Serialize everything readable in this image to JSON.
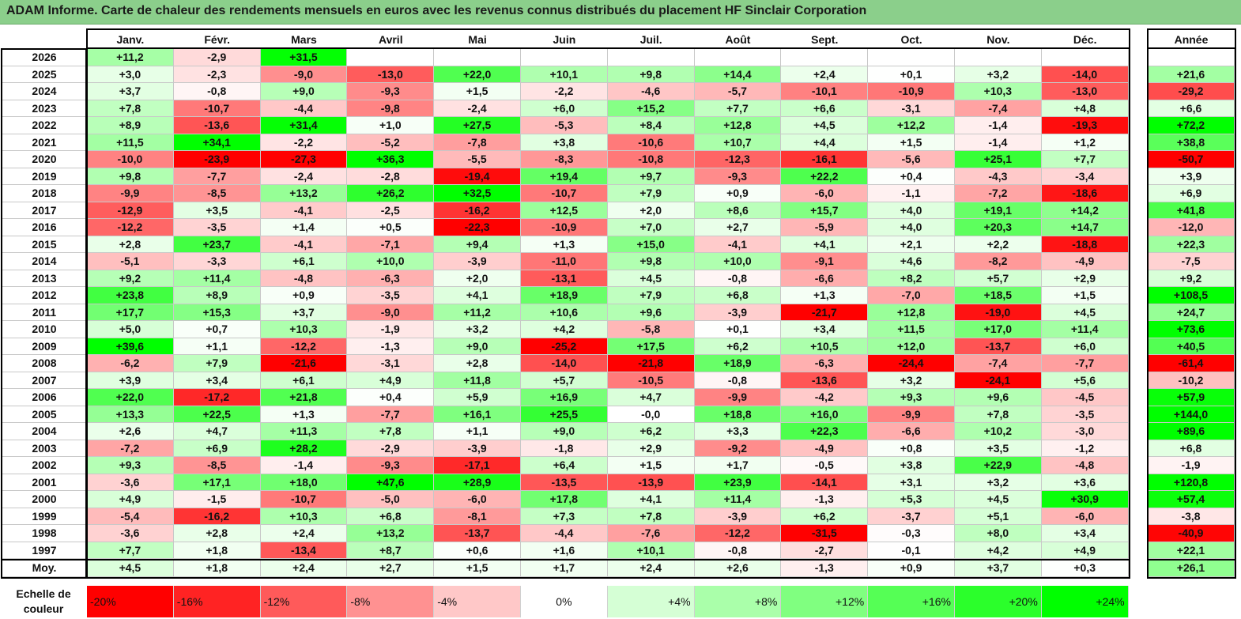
{
  "title": "ADAM Informe. Carte de chaleur des rendements mensuels en euros avec les revenus connus distribués du placement HF Sinclair Corporation",
  "chart_data": {
    "type": "heatmap",
    "title": "ADAM Informe. Carte de chaleur des rendements mensuels en euros avec les revenus connus distribués du placement HF Sinclair Corporation",
    "columns": [
      "Janv.",
      "Févr.",
      "Mars",
      "Avril",
      "Mai",
      "Juin",
      "Juil.",
      "Août",
      "Sept.",
      "Oct.",
      "Nov.",
      "Déc."
    ],
    "annual_label": "Année",
    "rows": [
      {
        "year": "2026",
        "values": [
          "+11,2",
          "-2,9",
          "+31,5",
          "",
          "",
          "",
          "",
          "",
          "",
          "",
          "",
          ""
        ],
        "annual": ""
      },
      {
        "year": "2025",
        "values": [
          "+3,0",
          "-2,3",
          "-9,0",
          "-13,0",
          "+22,0",
          "+10,1",
          "+9,8",
          "+14,4",
          "+2,4",
          "+0,1",
          "+3,2",
          "-14,0"
        ],
        "annual": "+21,6"
      },
      {
        "year": "2024",
        "values": [
          "+3,7",
          "-0,8",
          "+9,0",
          "-9,3",
          "+1,5",
          "-2,2",
          "-4,6",
          "-5,7",
          "-10,1",
          "-10,9",
          "+10,3",
          "-13,0"
        ],
        "annual": "-29,2"
      },
      {
        "year": "2023",
        "values": [
          "+7,8",
          "-10,7",
          "-4,4",
          "-9,8",
          "-2,4",
          "+6,0",
          "+15,2",
          "+7,7",
          "+6,6",
          "-3,1",
          "-7,4",
          "+4,8"
        ],
        "annual": "+6,6"
      },
      {
        "year": "2022",
        "values": [
          "+8,9",
          "-13,6",
          "+31,4",
          "+1,0",
          "+27,5",
          "-5,3",
          "+8,4",
          "+12,8",
          "+4,5",
          "+12,2",
          "-1,4",
          "-19,3"
        ],
        "annual": "+72,2"
      },
      {
        "year": "2021",
        "values": [
          "+11,5",
          "+34,1",
          "-2,2",
          "-5,2",
          "-7,8",
          "+3,8",
          "-10,6",
          "+10,7",
          "+4,4",
          "+1,5",
          "-1,4",
          "+1,2"
        ],
        "annual": "+38,8"
      },
      {
        "year": "2020",
        "values": [
          "-10,0",
          "-23,9",
          "-27,3",
          "+36,3",
          "-5,5",
          "-8,3",
          "-10,8",
          "-12,3",
          "-16,1",
          "-5,6",
          "+25,1",
          "+7,7"
        ],
        "annual": "-50,7"
      },
      {
        "year": "2019",
        "values": [
          "+9,8",
          "-7,7",
          "-2,4",
          "-2,8",
          "-19,4",
          "+19,4",
          "+9,7",
          "-9,3",
          "+22,2",
          "+0,4",
          "-4,3",
          "-3,4"
        ],
        "annual": "+3,9"
      },
      {
        "year": "2018",
        "values": [
          "-9,9",
          "-8,5",
          "+13,2",
          "+26,2",
          "+32,5",
          "-10,7",
          "+7,9",
          "+0,9",
          "-6,0",
          "-1,1",
          "-7,2",
          "-18,6"
        ],
        "annual": "+6,9"
      },
      {
        "year": "2017",
        "values": [
          "-12,9",
          "+3,5",
          "-4,1",
          "-2,5",
          "-16,2",
          "+12,5",
          "+2,0",
          "+8,6",
          "+15,7",
          "+4,0",
          "+19,1",
          "+14,2"
        ],
        "annual": "+41,8"
      },
      {
        "year": "2016",
        "values": [
          "-12,2",
          "-3,5",
          "+1,4",
          "+0,5",
          "-22,3",
          "-10,9",
          "+7,0",
          "+2,7",
          "-5,9",
          "+4,0",
          "+20,3",
          "+14,7"
        ],
        "annual": "-12,0"
      },
      {
        "year": "2015",
        "values": [
          "+2,8",
          "+23,7",
          "-4,1",
          "-7,1",
          "+9,4",
          "+1,3",
          "+15,0",
          "-4,1",
          "+4,1",
          "+2,1",
          "+2,2",
          "-18,8"
        ],
        "annual": "+22,3"
      },
      {
        "year": "2014",
        "values": [
          "-5,1",
          "-3,3",
          "+6,1",
          "+10,0",
          "-3,9",
          "-11,0",
          "+9,8",
          "+10,0",
          "-9,1",
          "+4,6",
          "-8,2",
          "-4,9"
        ],
        "annual": "-7,5"
      },
      {
        "year": "2013",
        "values": [
          "+9,2",
          "+11,4",
          "-4,8",
          "-6,3",
          "+2,0",
          "-13,1",
          "+4,5",
          "-0,8",
          "-6,6",
          "+8,2",
          "+5,7",
          "+2,9"
        ],
        "annual": "+9,2"
      },
      {
        "year": "2012",
        "values": [
          "+23,8",
          "+8,9",
          "+0,9",
          "-3,5",
          "+4,1",
          "+18,9",
          "+7,9",
          "+6,8",
          "+1,3",
          "-7,0",
          "+18,5",
          "+1,5"
        ],
        "annual": "+108,5"
      },
      {
        "year": "2011",
        "values": [
          "+17,7",
          "+15,3",
          "+3,7",
          "-9,0",
          "+11,2",
          "+10,6",
          "+9,6",
          "-3,9",
          "-21,7",
          "+12,8",
          "-19,0",
          "+4,5"
        ],
        "annual": "+24,7"
      },
      {
        "year": "2010",
        "values": [
          "+5,0",
          "+0,7",
          "+10,3",
          "-1,9",
          "+3,2",
          "+4,2",
          "-5,8",
          "+0,1",
          "+3,4",
          "+11,5",
          "+17,0",
          "+11,4"
        ],
        "annual": "+73,6"
      },
      {
        "year": "2009",
        "values": [
          "+39,6",
          "+1,1",
          "-12,2",
          "-1,3",
          "+9,0",
          "-25,2",
          "+17,5",
          "+6,2",
          "+10,5",
          "+12,0",
          "-13,7",
          "+6,0"
        ],
        "annual": "+40,5"
      },
      {
        "year": "2008",
        "values": [
          "-6,2",
          "+7,9",
          "-21,6",
          "-3,1",
          "+2,8",
          "-14,0",
          "-21,8",
          "+18,9",
          "-6,3",
          "-24,4",
          "-7,4",
          "-7,7"
        ],
        "annual": "-61,4"
      },
      {
        "year": "2007",
        "values": [
          "+3,9",
          "+3,4",
          "+6,1",
          "+4,9",
          "+11,8",
          "+5,7",
          "-10,5",
          "-0,8",
          "-13,6",
          "+3,2",
          "-24,1",
          "+5,6"
        ],
        "annual": "-10,2"
      },
      {
        "year": "2006",
        "values": [
          "+22,0",
          "-17,2",
          "+21,8",
          "+0,4",
          "+5,9",
          "+16,9",
          "+4,7",
          "-9,9",
          "-4,2",
          "+9,3",
          "+9,6",
          "-4,5"
        ],
        "annual": "+57,9"
      },
      {
        "year": "2005",
        "values": [
          "+13,3",
          "+22,5",
          "+1,3",
          "-7,7",
          "+16,1",
          "+25,5",
          "-0,0",
          "+18,8",
          "+16,0",
          "-9,9",
          "+7,8",
          "-3,5"
        ],
        "annual": "+144,0"
      },
      {
        "year": "2004",
        "values": [
          "+2,6",
          "+4,7",
          "+11,3",
          "+7,8",
          "+1,1",
          "+9,0",
          "+6,2",
          "+3,3",
          "+22,3",
          "-6,6",
          "+10,2",
          "-3,0"
        ],
        "annual": "+89,6"
      },
      {
        "year": "2003",
        "values": [
          "-7,2",
          "+6,9",
          "+28,2",
          "-2,9",
          "-3,9",
          "-1,8",
          "+2,9",
          "-9,2",
          "-4,9",
          "+0,8",
          "+3,5",
          "-1,2"
        ],
        "annual": "+6,8"
      },
      {
        "year": "2002",
        "values": [
          "+9,3",
          "-8,5",
          "-1,4",
          "-9,3",
          "-17,1",
          "+6,4",
          "+1,5",
          "+1,7",
          "-0,5",
          "+3,8",
          "+22,9",
          "-4,8"
        ],
        "annual": "-1,9"
      },
      {
        "year": "2001",
        "values": [
          "-3,6",
          "+17,1",
          "+18,0",
          "+47,6",
          "+28,9",
          "-13,5",
          "-13,9",
          "+23,9",
          "-14,1",
          "+3,1",
          "+3,2",
          "+3,6"
        ],
        "annual": "+120,8"
      },
      {
        "year": "2000",
        "values": [
          "+4,9",
          "-1,5",
          "-10,7",
          "-5,0",
          "-6,0",
          "+17,8",
          "+4,1",
          "+11,4",
          "-1,3",
          "+5,3",
          "+4,5",
          "+30,9"
        ],
        "annual": "+57,4"
      },
      {
        "year": "1999",
        "values": [
          "-5,4",
          "-16,2",
          "+10,3",
          "+6,8",
          "-8,1",
          "+7,3",
          "+7,8",
          "-3,9",
          "+6,2",
          "-3,7",
          "+5,1",
          "-6,0"
        ],
        "annual": "-3,8"
      },
      {
        "year": "1998",
        "values": [
          "-3,6",
          "+2,8",
          "+2,4",
          "+13,2",
          "-13,7",
          "-4,4",
          "-7,6",
          "-12,2",
          "-31,5",
          "-0,3",
          "+8,0",
          "+3,4"
        ],
        "annual": "-40,9"
      },
      {
        "year": "1997",
        "values": [
          "+7,7",
          "+1,8",
          "-13,4",
          "+8,7",
          "+0,6",
          "+1,6",
          "+10,1",
          "-0,8",
          "-2,7",
          "-0,1",
          "+4,2",
          "+4,9"
        ],
        "annual": "+22,1"
      }
    ],
    "average": {
      "label": "Moy.",
      "values": [
        "+4,5",
        "+1,8",
        "+2,4",
        "+2,7",
        "+1,5",
        "+1,7",
        "+2,4",
        "+2,6",
        "-1,3",
        "+0,9",
        "+3,7",
        "+0,3"
      ],
      "annual": "+26,1"
    },
    "color_scale": {
      "label": "Echelle de couleur",
      "stops": [
        "-20%",
        "-16%",
        "-12%",
        "-8%",
        "-4%",
        "0%",
        "+4%",
        "+8%",
        "+12%",
        "+16%",
        "+20%",
        "+24%"
      ],
      "stop_values": [
        -20,
        -16,
        -12,
        -8,
        -4,
        0,
        4,
        8,
        12,
        16,
        20,
        24
      ],
      "negative_color": "#ff0000",
      "positive_color": "#00ff00",
      "neutral_color": "#ffffff"
    }
  }
}
